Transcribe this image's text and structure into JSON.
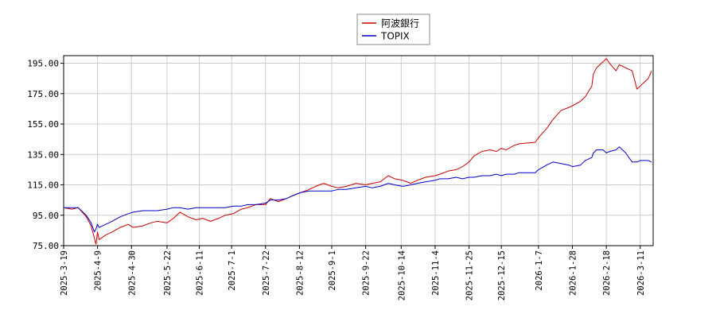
{
  "chart_data": {
    "type": "line",
    "title": "",
    "xlabel": "",
    "ylabel": "",
    "ylim": [
      75,
      200
    ],
    "xlim": [
      "2025-03-19",
      "2026-03-19"
    ],
    "yticks": [
      75,
      95,
      115,
      135,
      155,
      175,
      195
    ],
    "ytick_labels": [
      "75.00",
      "95.00",
      "115.00",
      "135.00",
      "155.00",
      "175.00",
      "195.00"
    ],
    "xtick_labels": [
      "2025-3-19",
      "2025-4-9",
      "2025-4-30",
      "2025-5-22",
      "2025-6-11",
      "2025-7-1",
      "2025-7-22",
      "2025-8-12",
      "2025-9-1",
      "2025-9-22",
      "2025-10-14",
      "2025-11-4",
      "2025-11-25",
      "2025-12-15",
      "2026-1-7",
      "2026-1-28",
      "2026-2-18",
      "2026-3-11"
    ],
    "grid": true,
    "legend_position": "top-center",
    "series": [
      {
        "name": "阿波銀行",
        "color": "#cc0000",
        "x": [
          "2025-03-19",
          "2025-03-24",
          "2025-03-28",
          "2025-04-02",
          "2025-04-05",
          "2025-04-07",
          "2025-04-08",
          "2025-04-09",
          "2025-04-10",
          "2025-04-14",
          "2025-04-18",
          "2025-04-23",
          "2025-04-28",
          "2025-05-01",
          "2025-05-07",
          "2025-05-12",
          "2025-05-16",
          "2025-05-22",
          "2025-05-26",
          "2025-05-30",
          "2025-06-04",
          "2025-06-09",
          "2025-06-13",
          "2025-06-18",
          "2025-06-23",
          "2025-06-27",
          "2025-07-02",
          "2025-07-07",
          "2025-07-11",
          "2025-07-16",
          "2025-07-22",
          "2025-07-25",
          "2025-07-30",
          "2025-08-04",
          "2025-08-08",
          "2025-08-13",
          "2025-08-18",
          "2025-08-22",
          "2025-08-27",
          "2025-09-01",
          "2025-09-05",
          "2025-09-10",
          "2025-09-16",
          "2025-09-22",
          "2025-09-26",
          "2025-10-01",
          "2025-10-06",
          "2025-10-10",
          "2025-10-15",
          "2025-10-20",
          "2025-10-24",
          "2025-10-29",
          "2025-11-04",
          "2025-11-07",
          "2025-11-12",
          "2025-11-17",
          "2025-11-21",
          "2025-11-25",
          "2025-11-28",
          "2025-12-03",
          "2025-12-08",
          "2025-12-12",
          "2025-12-15",
          "2025-12-18",
          "2025-12-23",
          "2025-12-26",
          "2026-01-05",
          "2026-01-07",
          "2026-01-12",
          "2026-01-16",
          "2026-01-21",
          "2026-01-26",
          "2026-01-28",
          "2026-02-02",
          "2026-02-05",
          "2026-02-09",
          "2026-02-10",
          "2026-02-12",
          "2026-02-16",
          "2026-02-18",
          "2026-02-20",
          "2026-02-24",
          "2026-02-26",
          "2026-03-02",
          "2026-03-04",
          "2026-03-06",
          "2026-03-09",
          "2026-03-11",
          "2026-03-13",
          "2026-03-16",
          "2026-03-18"
        ],
        "values": [
          100,
          99,
          100,
          94,
          88,
          80,
          76,
          84,
          79,
          82,
          84,
          87,
          89,
          87,
          88,
          90,
          91,
          90,
          93,
          97,
          94,
          92,
          93,
          91,
          93,
          95,
          96,
          99,
          100,
          102,
          102,
          106,
          104,
          106,
          108,
          110,
          112,
          114,
          116,
          114,
          113,
          114,
          116,
          115,
          116,
          117,
          121,
          119,
          118,
          116,
          118,
          120,
          121,
          122,
          124,
          125,
          127,
          130,
          134,
          137,
          138,
          137,
          139,
          138,
          141,
          142,
          143,
          146,
          152,
          158,
          164,
          166,
          167,
          170,
          173,
          180,
          188,
          192,
          196,
          198,
          195,
          190,
          194,
          192,
          191,
          190,
          178,
          180,
          182,
          185,
          190
        ]
      },
      {
        "name": "TOPIX",
        "color": "#0000cc",
        "x": [
          "2025-03-19",
          "2025-03-24",
          "2025-03-28",
          "2025-04-02",
          "2025-04-05",
          "2025-04-07",
          "2025-04-08",
          "2025-04-09",
          "2025-04-10",
          "2025-04-14",
          "2025-04-18",
          "2025-04-23",
          "2025-04-28",
          "2025-05-01",
          "2025-05-07",
          "2025-05-12",
          "2025-05-16",
          "2025-05-22",
          "2025-05-26",
          "2025-05-30",
          "2025-06-04",
          "2025-06-09",
          "2025-06-13",
          "2025-06-18",
          "2025-06-23",
          "2025-06-27",
          "2025-07-02",
          "2025-07-07",
          "2025-07-11",
          "2025-07-16",
          "2025-07-22",
          "2025-07-25",
          "2025-07-30",
          "2025-08-04",
          "2025-08-08",
          "2025-08-13",
          "2025-08-18",
          "2025-08-22",
          "2025-08-27",
          "2025-09-01",
          "2025-09-05",
          "2025-09-10",
          "2025-09-16",
          "2025-09-22",
          "2025-09-26",
          "2025-10-01",
          "2025-10-06",
          "2025-10-10",
          "2025-10-15",
          "2025-10-20",
          "2025-10-24",
          "2025-10-29",
          "2025-11-04",
          "2025-11-07",
          "2025-11-12",
          "2025-11-17",
          "2025-11-21",
          "2025-11-25",
          "2025-11-28",
          "2025-12-03",
          "2025-12-08",
          "2025-12-12",
          "2025-12-15",
          "2025-12-18",
          "2025-12-23",
          "2025-12-26",
          "2026-01-05",
          "2026-01-07",
          "2026-01-12",
          "2026-01-16",
          "2026-01-21",
          "2026-01-26",
          "2026-01-28",
          "2026-02-02",
          "2026-02-05",
          "2026-02-09",
          "2026-02-10",
          "2026-02-12",
          "2026-02-16",
          "2026-02-18",
          "2026-02-20",
          "2026-02-24",
          "2026-02-26",
          "2026-03-02",
          "2026-03-04",
          "2026-03-06",
          "2026-03-09",
          "2026-03-11",
          "2026-03-13",
          "2026-03-16",
          "2026-03-18"
        ],
        "values": [
          100,
          100,
          100,
          95,
          90,
          84,
          86,
          89,
          87,
          89,
          91,
          94,
          96,
          97,
          98,
          98,
          98,
          99,
          100,
          100,
          99,
          100,
          100,
          100,
          100,
          100,
          101,
          101,
          102,
          102,
          103,
          105,
          105,
          106,
          108,
          110,
          111,
          111,
          111,
          111,
          112,
          112,
          113,
          114,
          113,
          114,
          116,
          115,
          114,
          115,
          116,
          117,
          118,
          119,
          119,
          120,
          119,
          120,
          120,
          121,
          121,
          122,
          121,
          122,
          122,
          123,
          123,
          125,
          128,
          130,
          129,
          128,
          127,
          128,
          131,
          133,
          136,
          138,
          138,
          136,
          137,
          138,
          140,
          136,
          133,
          130,
          130,
          131,
          131,
          131,
          130
        ]
      }
    ]
  }
}
